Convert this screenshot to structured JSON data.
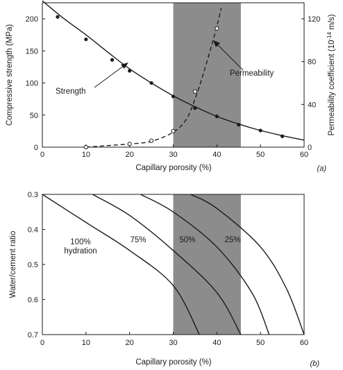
{
  "colors": {
    "shade": "#8c8c8c",
    "line": "#1a1a1a",
    "background": "#ffffff"
  },
  "chart_data": [
    {
      "type": "line",
      "panel_label": "(a)",
      "xlabel": "Capillary porosity  (%)",
      "ylabel_left": "Compressive strength (MPa)",
      "ylabel_right_prefix": "Permeability coefficient (10",
      "ylabel_right_sup": "-14",
      "ylabel_right_suffix": " m/s)",
      "xlim": [
        0,
        60
      ],
      "ylim_left": [
        0,
        225
      ],
      "ylim_right": [
        0,
        135
      ],
      "xticks": [
        "0",
        "10",
        "20",
        "30",
        "40",
        "50",
        "60"
      ],
      "yticks_left": [
        "0",
        "50",
        "100",
        "150",
        "200"
      ],
      "yticks_right": [
        "0",
        "40",
        "80",
        "120"
      ],
      "shaded_band": [
        30,
        45.5
      ],
      "annotations": {
        "strength": "Strength",
        "permeability": "Permeability"
      },
      "series": [
        {
          "key": "strength",
          "axis": "left",
          "style": "solid",
          "curve": [
            [
              0,
              228
            ],
            [
              5,
              200
            ],
            [
              10,
              175
            ],
            [
              15,
              148
            ],
            [
              20,
              122
            ],
            [
              25,
              100
            ],
            [
              30,
              80
            ],
            [
              35,
              63
            ],
            [
              40,
              48
            ],
            [
              45,
              36
            ],
            [
              50,
              26
            ],
            [
              55,
              18
            ],
            [
              60,
              11
            ]
          ],
          "points": [
            [
              3.5,
              203
            ],
            [
              10,
              168
            ],
            [
              16,
              136
            ],
            [
              20,
              119
            ],
            [
              25,
              100
            ],
            [
              30,
              79
            ],
            [
              35,
              61
            ],
            [
              40,
              48
            ],
            [
              45,
              35
            ],
            [
              50,
              26
            ],
            [
              55,
              17
            ]
          ]
        },
        {
          "key": "permeability",
          "axis": "right",
          "style": "dashed",
          "curve": [
            [
              10,
              0
            ],
            [
              15,
              1.5
            ],
            [
              20,
              3
            ],
            [
              25,
              5.5
            ],
            [
              30,
              14
            ],
            [
              33,
              26
            ],
            [
              35,
              45
            ],
            [
              37,
              70
            ],
            [
              39,
              98
            ],
            [
              40,
              113
            ],
            [
              41,
              130
            ]
          ],
          "points": [
            [
              10,
              0
            ],
            [
              20,
              3
            ],
            [
              25,
              6
            ],
            [
              30,
              15
            ],
            [
              35,
              52
            ],
            [
              40,
              111
            ]
          ]
        }
      ]
    },
    {
      "type": "line",
      "panel_label": "(b)",
      "xlabel": "Capillary porosity  (%)",
      "ylabel": "Water/cement ratio",
      "xlim": [
        0,
        60
      ],
      "ylim": [
        0.3,
        0.7
      ],
      "y_inverted": true,
      "xticks": [
        "0",
        "10",
        "20",
        "30",
        "40",
        "50",
        "60"
      ],
      "yticks": [
        "0.3",
        "0.4",
        "0.5",
        "0.6",
        "0.7"
      ],
      "shaded_band": [
        30,
        45.5
      ],
      "series": [
        {
          "name": "100%",
          "name_line2": "hydration",
          "curve": [
            [
              0,
              0.3
            ],
            [
              10,
              0.38
            ],
            [
              20,
              0.46
            ],
            [
              30,
              0.56
            ],
            [
              36,
              0.7
            ]
          ]
        },
        {
          "name": "75%",
          "curve": [
            [
              11.5,
              0.3
            ],
            [
              20,
              0.36
            ],
            [
              30,
              0.46
            ],
            [
              40,
              0.58
            ],
            [
              45.5,
              0.7
            ]
          ]
        },
        {
          "name": "50%",
          "curve": [
            [
              22.5,
              0.3
            ],
            [
              30,
              0.35
            ],
            [
              40,
              0.45
            ],
            [
              48,
              0.58
            ],
            [
              52,
              0.7
            ]
          ]
        },
        {
          "name": "25%",
          "curve": [
            [
              34,
              0.3
            ],
            [
              40,
              0.34
            ],
            [
              50,
              0.45
            ],
            [
              56,
              0.57
            ],
            [
              60,
              0.7
            ]
          ]
        }
      ]
    }
  ]
}
